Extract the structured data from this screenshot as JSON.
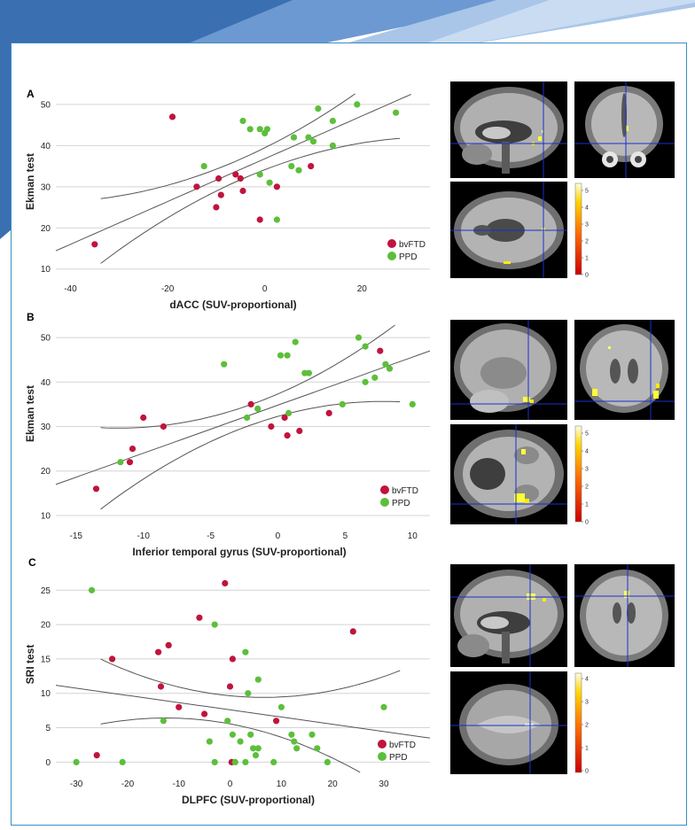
{
  "colors": {
    "bvFTD": "#c0143c",
    "PPD": "#5cbf3a",
    "frame": "#3b8cc4",
    "banner_dark": "#3a6fb2",
    "banner_light": "#7ea7d8"
  },
  "chart_data": [
    {
      "panel": "A",
      "type": "scatter",
      "xlabel": "dACC (SUV-proportional)",
      "ylabel": "Ekman test",
      "xlim": [
        -43,
        34
      ],
      "ylim": [
        8,
        53
      ],
      "xticks": [
        -40,
        -20,
        0,
        20
      ],
      "yticks": [
        10,
        20,
        30,
        40,
        50
      ],
      "grid": "horizontal",
      "legend": [
        "bvFTD",
        "PPD"
      ],
      "legend_position": "bottom-right",
      "fit": {
        "intercept": 36.8,
        "slope": 0.52,
        "band_center": -5,
        "band_half_min": 2.5,
        "band_curvature": 0.0065
      },
      "series": [
        {
          "name": "bvFTD",
          "points": [
            [
              -35,
              16
            ],
            [
              -19,
              47
            ],
            [
              -14,
              30
            ],
            [
              -10,
              25
            ],
            [
              -9.5,
              32
            ],
            [
              -9,
              28
            ],
            [
              -6,
              33
            ],
            [
              -5,
              32
            ],
            [
              -4.5,
              29
            ],
            [
              -1,
              22
            ],
            [
              2.5,
              30
            ],
            [
              9.5,
              35
            ]
          ]
        },
        {
          "name": "PPD",
          "points": [
            [
              -12.5,
              35
            ],
            [
              -4.5,
              46
            ],
            [
              -3,
              44
            ],
            [
              -1,
              44
            ],
            [
              0,
              43
            ],
            [
              0.5,
              44
            ],
            [
              1,
              31
            ],
            [
              2.5,
              22
            ],
            [
              -1,
              33
            ],
            [
              5.5,
              35
            ],
            [
              6,
              42
            ],
            [
              7,
              34
            ],
            [
              9,
              42
            ],
            [
              10,
              41
            ],
            [
              11,
              49
            ],
            [
              14,
              40
            ],
            [
              14,
              46
            ],
            [
              19,
              50
            ],
            [
              27,
              48
            ]
          ]
        }
      ]
    },
    {
      "panel": "B",
      "type": "scatter",
      "xlabel": "Inferior temporal gyrus (SUV-proportional)",
      "ylabel": "Ekman test",
      "xlim": [
        -16.5,
        11.3
      ],
      "ylim": [
        8,
        53
      ],
      "xticks": [
        -15,
        -10,
        -5,
        0,
        5,
        10
      ],
      "yticks": [
        10,
        20,
        30,
        40,
        50
      ],
      "grid": "horizontal",
      "legend": [
        "bvFTD",
        "PPD"
      ],
      "legend_position": "bottom-right",
      "fit": {
        "intercept": 34.8,
        "slope": 1.08,
        "band_center": -2,
        "band_half_min": 2.3,
        "band_curvature": 0.055
      },
      "series": [
        {
          "name": "bvFTD",
          "points": [
            [
              -13.5,
              16
            ],
            [
              -11,
              22
            ],
            [
              -10.8,
              25
            ],
            [
              -10,
              32
            ],
            [
              -8.5,
              30
            ],
            [
              -2,
              35
            ],
            [
              -0.5,
              30
            ],
            [
              0.5,
              32
            ],
            [
              0.7,
              28
            ],
            [
              1.6,
              29
            ],
            [
              3.8,
              33
            ],
            [
              7.6,
              47
            ]
          ]
        },
        {
          "name": "PPD",
          "points": [
            [
              -11.7,
              22
            ],
            [
              -4,
              44
            ],
            [
              -2.3,
              32
            ],
            [
              -1.5,
              34
            ],
            [
              0.2,
              46
            ],
            [
              0.7,
              46
            ],
            [
              0.8,
              33
            ],
            [
              1.3,
              49
            ],
            [
              2,
              42
            ],
            [
              2.3,
              42
            ],
            [
              4.8,
              35
            ],
            [
              6,
              50
            ],
            [
              6.5,
              48
            ],
            [
              6.5,
              40
            ],
            [
              7.2,
              41
            ],
            [
              8,
              44
            ],
            [
              8.3,
              43
            ],
            [
              10,
              35
            ]
          ]
        }
      ]
    },
    {
      "panel": "C",
      "type": "scatter",
      "xlabel": "DLPFC (SUV-proportional)",
      "ylabel": "SRI test",
      "xlim": [
        -34,
        39
      ],
      "ylim": [
        -1.5,
        28
      ],
      "xticks": [
        -30,
        -20,
        -10,
        0,
        10,
        20,
        30
      ],
      "yticks": [
        0,
        5,
        10,
        15,
        20,
        25
      ],
      "grid": "horizontal",
      "legend": [
        "bvFTD",
        "PPD"
      ],
      "legend_position": "bottom-right",
      "fit": {
        "intercept": 7.6,
        "slope": -0.105,
        "band_center": -3,
        "band_half_min": 2.0,
        "band_curvature": 0.0055
      },
      "series": [
        {
          "name": "bvFTD",
          "points": [
            [
              -26,
              1
            ],
            [
              -23,
              15
            ],
            [
              -14,
              16
            ],
            [
              -13.5,
              11
            ],
            [
              -12,
              17
            ],
            [
              -10,
              8
            ],
            [
              -6,
              21
            ],
            [
              -5,
              7
            ],
            [
              -1,
              26
            ],
            [
              0,
              11
            ],
            [
              0.5,
              15
            ],
            [
              0.3,
              0
            ],
            [
              9,
              6
            ],
            [
              24,
              19
            ]
          ]
        },
        {
          "name": "PPD",
          "points": [
            [
              -30,
              0
            ],
            [
              -27,
              25
            ],
            [
              -21,
              0
            ],
            [
              -13,
              6
            ],
            [
              -3,
              20
            ],
            [
              -4,
              3
            ],
            [
              -3,
              0
            ],
            [
              -0.5,
              6
            ],
            [
              0.5,
              4
            ],
            [
              1,
              0
            ],
            [
              2,
              3
            ],
            [
              3,
              0
            ],
            [
              3,
              16
            ],
            [
              3.5,
              10
            ],
            [
              4,
              4
            ],
            [
              4.5,
              2
            ],
            [
              5,
              1
            ],
            [
              5.5,
              2
            ],
            [
              5.5,
              12
            ],
            [
              8.5,
              0
            ],
            [
              10,
              8
            ],
            [
              12,
              4
            ],
            [
              12.5,
              3
            ],
            [
              13,
              2
            ],
            [
              16,
              4
            ],
            [
              17,
              2
            ],
            [
              19,
              0
            ],
            [
              30,
              8
            ]
          ]
        }
      ]
    }
  ],
  "brain_panels": [
    {
      "panel": "A",
      "colorbar_ticks": [
        "5",
        "4",
        "3",
        "2",
        "1",
        "0"
      ]
    },
    {
      "panel": "B",
      "colorbar_ticks": [
        "5",
        "4",
        "3",
        "2",
        "1",
        "0"
      ]
    },
    {
      "panel": "C",
      "colorbar_ticks": [
        "4",
        "3",
        "2",
        "1",
        "0"
      ]
    }
  ]
}
